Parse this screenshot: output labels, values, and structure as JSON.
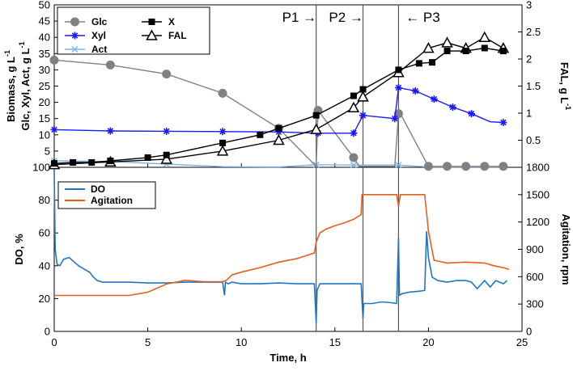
{
  "chart_data": [
    {
      "type": "line",
      "panel": "top",
      "xlabel": "Time,  h",
      "xlim": [
        0,
        25
      ],
      "xticks": [
        0,
        5,
        10,
        15,
        20,
        25
      ],
      "ylabel_main": "Biomass,  g L",
      "ylabel_sub": "Glc, Xyl, Act,  g L",
      "ylabel_exp": "-1",
      "ylim": [
        0,
        50
      ],
      "yticks": [
        0,
        5,
        10,
        15,
        20,
        25,
        30,
        35,
        40,
        45,
        50
      ],
      "y2label": "FAL,  g L",
      "y2label_exp": "-1",
      "y2lim": [
        0,
        3
      ],
      "y2ticks": [
        0,
        0.5,
        1,
        1.5,
        2,
        2.5,
        3
      ],
      "y2ticklabels": [
        "",
        "0.5",
        "1",
        "1.5",
        "2",
        "2.5",
        "3"
      ],
      "phase_lines": [
        14,
        16.5,
        18.4
      ],
      "phase_labels": [
        {
          "text": "P1 →",
          "x": 13.1
        },
        {
          "text": "P2 →",
          "x": 15.6
        },
        {
          "text": "← P3",
          "x": 19.7
        }
      ],
      "series": [
        {
          "name": "Glc",
          "axis": "left",
          "color": "#808080",
          "marker": "circle",
          "x": [
            0,
            3,
            6,
            9,
            12,
            14,
            14.1,
            16,
            16.3,
            16.6,
            18.2,
            18.4,
            18.5,
            20,
            21,
            22,
            23,
            24
          ],
          "y": [
            33,
            31.5,
            28.7,
            22.8,
            12,
            0.3,
            17.5,
            3,
            0.3,
            0.3,
            0.3,
            16.5,
            16.5,
            0.3,
            0.3,
            0.3,
            0.3,
            0.3
          ],
          "marker_idx": [
            0,
            1,
            2,
            3,
            4,
            6,
            7,
            11,
            13,
            14,
            15,
            16,
            17
          ]
        },
        {
          "name": "Xyl",
          "axis": "left",
          "color": "#1a1aff",
          "marker": "asterisk",
          "x": [
            0,
            3,
            6,
            9,
            12,
            14.1,
            16,
            16.5,
            18.2,
            18.4,
            19.3,
            20.3,
            21.3,
            22.3,
            23.3,
            24
          ],
          "y": [
            11.6,
            11.2,
            11.1,
            11,
            10.9,
            10.5,
            10.5,
            16,
            15,
            24.5,
            23.5,
            21,
            18.5,
            16.5,
            14,
            13.8
          ],
          "marker_idx": [
            0,
            1,
            2,
            3,
            4,
            5,
            6,
            7,
            8,
            9,
            10,
            11,
            12,
            13,
            15
          ]
        },
        {
          "name": "Act",
          "axis": "left",
          "color": "#7fb3e8",
          "marker": "x",
          "x": [
            0,
            3,
            6,
            9,
            12,
            14,
            16,
            18.4,
            20,
            21,
            22,
            23,
            24
          ],
          "y": [
            2,
            1.8,
            1,
            0.2,
            0.1,
            0.8,
            0.7,
            0.7,
            0.1,
            0.1,
            0.1,
            0.1,
            0.1
          ],
          "marker_idx": [
            0,
            1,
            2,
            5,
            6,
            7
          ]
        },
        {
          "name": "X",
          "axis": "left",
          "color": "#000000",
          "marker": "square",
          "x": [
            0,
            1,
            2,
            3,
            5,
            6,
            9,
            11,
            12,
            14,
            16,
            16.5,
            18.4,
            19.5,
            20.2,
            21,
            22,
            23,
            24
          ],
          "y": [
            1.2,
            1.5,
            1.5,
            2,
            3,
            3.8,
            7.5,
            10,
            12,
            16,
            22,
            24,
            30,
            32,
            32.3,
            35.8,
            35.8,
            36.7,
            35.8
          ],
          "marker_idx": [
            0,
            1,
            2,
            3,
            4,
            5,
            6,
            7,
            8,
            9,
            10,
            11,
            12,
            13,
            14,
            15,
            16,
            17,
            18
          ]
        },
        {
          "name": "FAL",
          "axis": "right",
          "color": "#000000",
          "marker": "triangle",
          "x": [
            0,
            3,
            6,
            9,
            12,
            14,
            16,
            16.5,
            18.4,
            20,
            21,
            22,
            23,
            24
          ],
          "y": [
            0.05,
            0.1,
            0.15,
            0.3,
            0.5,
            0.7,
            1.1,
            1.3,
            1.75,
            2.2,
            2.3,
            2.2,
            2.4,
            2.2
          ]
        }
      ]
    },
    {
      "type": "line",
      "panel": "bottom",
      "xlabel": "Time,  h",
      "xlim": [
        0,
        25
      ],
      "xticks": [
        0,
        5,
        10,
        15,
        20,
        25
      ],
      "ylabel": "DO,  %",
      "ylim": [
        0,
        100
      ],
      "yticks": [
        0,
        20,
        40,
        60,
        80,
        100
      ],
      "y2label": "Agitation,  rpm",
      "y2lim": [
        0,
        1800
      ],
      "y2ticks": [
        0,
        300,
        600,
        900,
        1200,
        1500,
        1800
      ],
      "y2ticklabels": [
        "0",
        "300",
        "600",
        "900",
        "1200",
        "1500",
        ""
      ],
      "series": [
        {
          "name": "DO",
          "axis": "left",
          "color": "#1f77c4",
          "x": [
            0,
            0.05,
            0.15,
            0.3,
            0.5,
            0.8,
            1.0,
            1.3,
            1.6,
            1.9,
            2.1,
            2.3,
            2.6,
            3,
            4,
            5,
            6,
            7,
            8,
            9,
            9.1,
            9.15,
            9.3,
            9.5,
            10,
            11,
            12,
            13,
            13.9,
            14.0,
            14.05,
            14.2,
            14.5,
            15,
            16,
            16.4,
            16.5,
            16.55,
            16.7,
            17,
            17.5,
            18,
            18.3,
            18.4,
            18.45,
            18.6,
            19,
            19.5,
            19.8,
            19.9,
            20.0,
            20.2,
            20.5,
            21,
            21.5,
            22,
            22.3,
            22.6,
            23,
            23.3,
            23.6,
            24,
            24.2
          ],
          "y": [
            98,
            50,
            41,
            40,
            44,
            45,
            43,
            40,
            38,
            36,
            33,
            31,
            30,
            30,
            30,
            29.5,
            29.5,
            30,
            30,
            30,
            22,
            30,
            29,
            30,
            29,
            29,
            29.5,
            29,
            29,
            5,
            25,
            29,
            29,
            29,
            29,
            29,
            8,
            17,
            17,
            17,
            18,
            17.5,
            17,
            57,
            22,
            23,
            24,
            24.5,
            25,
            61,
            45,
            33,
            31,
            30,
            31,
            31,
            30,
            26,
            31,
            27,
            31,
            29,
            31
          ]
        },
        {
          "name": "Agitation",
          "axis": "right",
          "color": "#e35f1d",
          "x": [
            0,
            2,
            4,
            5,
            6,
            7,
            8,
            9,
            9.2,
            9.5,
            10,
            11,
            12,
            13,
            13.9,
            14.0,
            14.2,
            14.5,
            15,
            15.5,
            16,
            16.4,
            16.45,
            16.55,
            17,
            17.5,
            18,
            18.3,
            18.4,
            18.5,
            19,
            19.5,
            19.8,
            20.0,
            20.3,
            21,
            22,
            23,
            23.5,
            24,
            24.3
          ],
          "y": [
            395,
            395,
            395,
            430,
            520,
            560,
            545,
            545,
            560,
            620,
            650,
            700,
            760,
            800,
            860,
            980,
            1080,
            1120,
            1160,
            1190,
            1230,
            1280,
            1500,
            1500,
            1500,
            1500,
            1500,
            1500,
            1370,
            1500,
            1500,
            1500,
            1500,
            1100,
            780,
            750,
            760,
            750,
            720,
            700,
            680
          ]
        }
      ]
    }
  ],
  "legends": {
    "top_left": [
      {
        "name": "Glc",
        "color": "#808080",
        "marker": "circle"
      },
      {
        "name": "Xyl",
        "color": "#1a1aff",
        "marker": "asterisk"
      },
      {
        "name": "Act",
        "color": "#7fb3e8",
        "marker": "x"
      }
    ],
    "top_right": [
      {
        "name": "X",
        "color": "#000000",
        "marker": "square"
      },
      {
        "name": "FAL",
        "color": "#000000",
        "marker": "triangle"
      }
    ],
    "bottom": [
      {
        "name": "DO",
        "color": "#1f77c4"
      },
      {
        "name": "Agitation",
        "color": "#e35f1d"
      }
    ]
  }
}
